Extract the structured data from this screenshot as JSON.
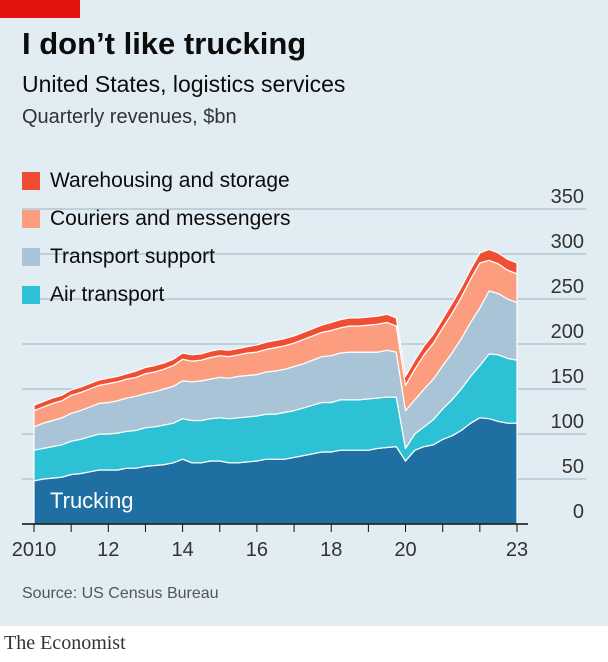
{
  "header": {
    "title": "I don’t like trucking",
    "subtitle": "United States, logistics services",
    "units": "Quarterly revenues, $bn"
  },
  "legend": [
    {
      "label": "Warehousing and storage",
      "color": "#f04e33"
    },
    {
      "label": "Couriers and messengers",
      "color": "#fc9d80"
    },
    {
      "label": "Transport support",
      "color": "#a9c4d6"
    },
    {
      "label": "Air transport",
      "color": "#2cc1d4"
    }
  ],
  "inline_label": "Trucking",
  "source": "Source: US Census Bureau",
  "brand": "The Economist",
  "chart_data": {
    "type": "area",
    "stacked": true,
    "title": "I don’t like trucking",
    "subtitle": "United States, logistics services",
    "ylabel": "Quarterly revenues, $bn",
    "ylim": [
      0,
      350
    ],
    "y_ticks": [
      0,
      50,
      100,
      150,
      200,
      250,
      300,
      350
    ],
    "y_tick_labels": [
      "0",
      "50",
      "100",
      "150",
      "200",
      "250",
      "300",
      "350"
    ],
    "x_tick_labels": [
      "2010",
      "12",
      "14",
      "16",
      "18",
      "20",
      "23"
    ],
    "x_tick_values": [
      2010,
      2012,
      2014,
      2016,
      2018,
      2020,
      2023
    ],
    "y_axis_position": "right",
    "grid": true,
    "x": [
      2010.0,
      2010.25,
      2010.5,
      2010.75,
      2011.0,
      2011.25,
      2011.5,
      2011.75,
      2012.0,
      2012.25,
      2012.5,
      2012.75,
      2013.0,
      2013.25,
      2013.5,
      2013.75,
      2014.0,
      2014.25,
      2014.5,
      2014.75,
      2015.0,
      2015.25,
      2015.5,
      2015.75,
      2016.0,
      2016.25,
      2016.5,
      2016.75,
      2017.0,
      2017.25,
      2017.5,
      2017.75,
      2018.0,
      2018.25,
      2018.5,
      2018.75,
      2019.0,
      2019.25,
      2019.5,
      2019.75,
      2020.0,
      2020.25,
      2020.5,
      2020.75,
      2021.0,
      2021.25,
      2021.5,
      2021.75,
      2022.0,
      2022.25,
      2022.5,
      2022.75,
      2023.0
    ],
    "series": [
      {
        "name": "Trucking",
        "color": "#1f6fa3",
        "values": [
          48,
          50,
          51,
          52,
          55,
          56,
          58,
          60,
          60,
          60,
          62,
          62,
          64,
          65,
          66,
          68,
          72,
          68,
          68,
          70,
          70,
          68,
          68,
          69,
          70,
          72,
          72,
          72,
          74,
          76,
          78,
          80,
          80,
          82,
          82,
          82,
          82,
          84,
          85,
          86,
          70,
          82,
          86,
          88,
          94,
          98,
          104,
          112,
          118,
          117,
          114,
          112,
          112
        ]
      },
      {
        "name": "Air transport",
        "color": "#2cc1d4",
        "values": [
          34,
          34,
          35,
          36,
          37,
          38,
          39,
          40,
          40,
          41,
          41,
          42,
          43,
          43,
          44,
          44,
          45,
          47,
          47,
          47,
          48,
          49,
          50,
          50,
          50,
          50,
          50,
          52,
          52,
          53,
          54,
          55,
          55,
          56,
          56,
          56,
          57,
          56,
          56,
          55,
          14,
          18,
          22,
          28,
          34,
          40,
          46,
          52,
          58,
          72,
          74,
          72,
          70
        ]
      },
      {
        "name": "Transport support",
        "color": "#a9c4d6",
        "values": [
          26,
          28,
          29,
          30,
          31,
          32,
          33,
          34,
          35,
          36,
          37,
          38,
          38,
          39,
          40,
          41,
          42,
          43,
          44,
          44,
          45,
          45,
          46,
          46,
          46,
          47,
          48,
          48,
          49,
          49,
          50,
          51,
          52,
          52,
          53,
          53,
          52,
          51,
          52,
          50,
          42,
          38,
          42,
          45,
          48,
          52,
          56,
          60,
          64,
          70,
          68,
          66,
          64
        ]
      },
      {
        "name": "Couriers and messengers",
        "color": "#fc9d80",
        "values": [
          18,
          18,
          19,
          19,
          20,
          20,
          20,
          20,
          21,
          21,
          21,
          21,
          22,
          22,
          22,
          23,
          24,
          23,
          23,
          24,
          24,
          24,
          24,
          25,
          25,
          25,
          26,
          26,
          26,
          27,
          27,
          27,
          28,
          28,
          29,
          29,
          30,
          31,
          31,
          29,
          28,
          34,
          38,
          40,
          42,
          44,
          46,
          48,
          50,
          34,
          33,
          32,
          32
        ]
      },
      {
        "name": "Warehousing and storage",
        "color": "#f04e33",
        "values": [
          6,
          6,
          6,
          6,
          6,
          6,
          6,
          6,
          6,
          6,
          6,
          7,
          7,
          7,
          7,
          7,
          7,
          7,
          7,
          7,
          7,
          7,
          7,
          7,
          8,
          8,
          8,
          8,
          8,
          8,
          8,
          8,
          9,
          9,
          9,
          9,
          9,
          9,
          9,
          9,
          10,
          10,
          10,
          10,
          10,
          11,
          11,
          11,
          11,
          12,
          12,
          12,
          12
        ]
      }
    ]
  }
}
